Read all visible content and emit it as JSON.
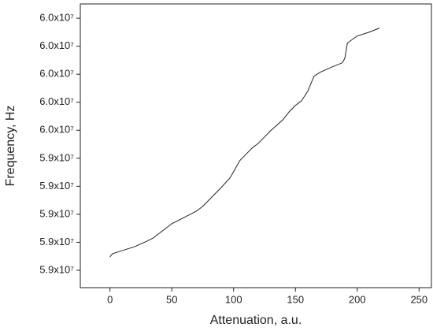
{
  "chart_data": {
    "type": "line",
    "xlabel": "Attenuation, a.u.",
    "ylabel": "Frequency, Hz",
    "xlim": [
      -24,
      260
    ],
    "xticks": [
      0,
      50,
      100,
      150,
      200,
      250
    ],
    "ylim": [
      58938000,
      59951000
    ],
    "yticks": [
      {
        "value": 59000000,
        "label": "5.9x10⁷"
      },
      {
        "value": 59100000,
        "label": "5.9x10⁷"
      },
      {
        "value": 59200000,
        "label": "5.9x10⁷"
      },
      {
        "value": 59300000,
        "label": "5.9x10⁷"
      },
      {
        "value": 59400000,
        "label": "5.9x10⁷"
      },
      {
        "value": 59500000,
        "label": "6.0x10⁷"
      },
      {
        "value": 59600000,
        "label": "6.0x10⁷"
      },
      {
        "value": 59700000,
        "label": "6.0x10⁷"
      },
      {
        "value": 59800000,
        "label": "6.0x10⁷"
      },
      {
        "value": 59900000,
        "label": "6.0x10⁷"
      }
    ],
    "series": [
      {
        "color": "#222222",
        "x": [
          0,
          2,
          10,
          20,
          30,
          35,
          40,
          50,
          60,
          70,
          75,
          80,
          90,
          97,
          100,
          105,
          110,
          115,
          120,
          130,
          140,
          145,
          150,
          155,
          160,
          165,
          170,
          180,
          188,
          190,
          192,
          200,
          210,
          218
        ],
        "values": [
          59047900,
          59059200,
          59070400,
          59084500,
          59104200,
          59115500,
          59132400,
          59166200,
          59188700,
          59211300,
          59228200,
          59250700,
          59295800,
          59329600,
          59352100,
          59391600,
          59414100,
          59436600,
          59453500,
          59498600,
          59538000,
          59566200,
          59588800,
          59605700,
          59639500,
          59693000,
          59707100,
          59726800,
          59740900,
          59757800,
          59811300,
          59836600,
          59850700,
          59864800
        ]
      }
    ]
  }
}
